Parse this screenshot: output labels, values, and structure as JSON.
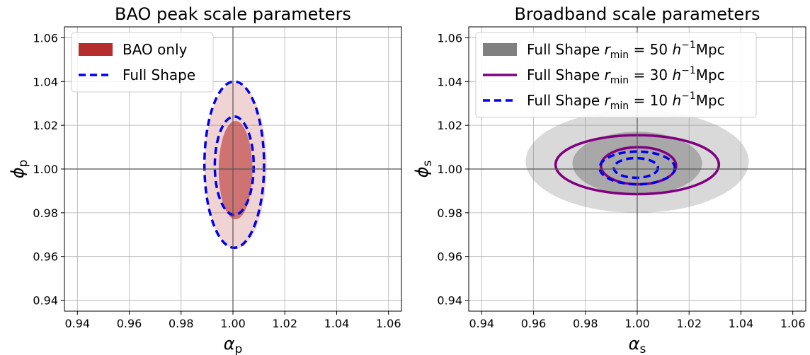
{
  "chart_data": [
    {
      "type": "contour",
      "title": "BAO peak scale parameters",
      "xlabel": {
        "main": "α",
        "sub": "p"
      },
      "ylabel": {
        "main": "ϕ",
        "sub": "p"
      },
      "xlim": [
        0.935,
        1.065
      ],
      "ylim": [
        0.935,
        1.065
      ],
      "xticks": [
        "0.94",
        "0.96",
        "0.98",
        "1.00",
        "1.02",
        "1.04",
        "1.06"
      ],
      "yticks": [
        "0.94",
        "0.96",
        "0.98",
        "1.00",
        "1.02",
        "1.04",
        "1.06"
      ],
      "grid": true,
      "reference_lines": {
        "x": 1.0,
        "y": 1.0
      },
      "legend_position": "upper-left",
      "series": [
        {
          "name": "BAO only",
          "style": "filled",
          "color": "#b22222",
          "contours": [
            {
              "level": "68%",
              "center": [
                1.001,
                0.9995
              ],
              "half_width": 0.0065,
              "half_height": 0.0225,
              "opacity": 0.55
            },
            {
              "level": "95%",
              "center": [
                1.001,
                1.0015
              ],
              "half_width": 0.012,
              "half_height": 0.038,
              "opacity": 0.2
            }
          ]
        },
        {
          "name": "Full Shape",
          "style": "dashed",
          "color": "#0000ee",
          "contours": [
            {
              "level": "68%",
              "center": [
                1.0005,
                1.0015
              ],
              "half_width": 0.0075,
              "half_height": 0.0225
            },
            {
              "level": "95%",
              "center": [
                1.0005,
                1.002
              ],
              "half_width": 0.0115,
              "half_height": 0.038
            }
          ]
        }
      ]
    },
    {
      "type": "contour",
      "title": "Broadband scale parameters",
      "xlabel": {
        "main": "α",
        "sub": "s"
      },
      "ylabel": {
        "main": "ϕ",
        "sub": "s"
      },
      "xlim": [
        0.935,
        1.065
      ],
      "ylim": [
        0.935,
        1.065
      ],
      "xticks": [
        "0.94",
        "0.96",
        "0.98",
        "1.00",
        "1.02",
        "1.04",
        "1.06"
      ],
      "yticks": [
        "0.94",
        "0.96",
        "0.98",
        "1.00",
        "1.02",
        "1.04",
        "1.06"
      ],
      "grid": true,
      "reference_lines": {
        "x": 1.0,
        "y": 1.0
      },
      "legend_position": "upper-left",
      "series": [
        {
          "name": "Full Shape r_min = 50 h^-1 Mpc",
          "legend": {
            "prefix": "Full Shape ",
            "r": "r",
            "rsub": "min",
            "eq": " = 50 ",
            "h": "h",
            "hsup": "−1",
            "unit": "Mpc"
          },
          "style": "filled",
          "color": "#808080",
          "contours": [
            {
              "level": "68%",
              "center": [
                1.0,
                1.0025
              ],
              "half_width": 0.025,
              "half_height": 0.0145,
              "opacity": 0.55
            },
            {
              "level": "95%",
              "center": [
                1.0,
                1.0035
              ],
              "half_width": 0.043,
              "half_height": 0.0235,
              "opacity": 0.3
            }
          ]
        },
        {
          "name": "Full Shape r_min = 30 h^-1 Mpc",
          "legend": {
            "prefix": "Full Shape ",
            "r": "r",
            "rsub": "min",
            "eq": " = 30 ",
            "h": "h",
            "hsup": "−1",
            "unit": "Mpc"
          },
          "style": "solid",
          "color": "#800080",
          "contours": [
            {
              "level": "68%",
              "center": [
                1.0005,
                1.0015
              ],
              "half_width": 0.0145,
              "half_height": 0.0085
            },
            {
              "level": "95%",
              "center": [
                1.0,
                1.002
              ],
              "half_width": 0.0315,
              "half_height": 0.0135
            }
          ]
        },
        {
          "name": "Full Shape r_min = 10 h^-1 Mpc",
          "legend": {
            "prefix": "Full Shape ",
            "r": "r",
            "rsub": "min",
            "eq": " = 10 ",
            "h": "h",
            "hsup": "−1",
            "unit": "Mpc"
          },
          "style": "dashed",
          "color": "#0000ee",
          "contours": [
            {
              "level": "68%",
              "center": [
                0.9995,
                1.0005
              ],
              "half_width": 0.0085,
              "half_height": 0.0045
            },
            {
              "level": "95%",
              "center": [
                1.0,
                1.0005
              ],
              "half_width": 0.0145,
              "half_height": 0.0075
            }
          ]
        }
      ]
    }
  ]
}
